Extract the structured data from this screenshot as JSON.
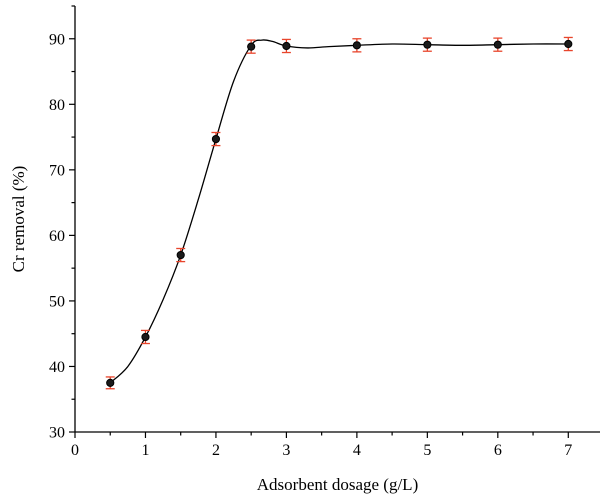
{
  "chart_data": {
    "type": "scatter",
    "xlabel": "Adsorbent dosage (g/L)",
    "ylabel": "Cr removal (%)",
    "xlim": [
      0,
      7.45
    ],
    "ylim": [
      30,
      95
    ],
    "xticks": [
      0,
      1,
      2,
      3,
      4,
      5,
      6,
      7
    ],
    "yticks": [
      30,
      40,
      50,
      60,
      70,
      80,
      90
    ],
    "x": [
      0.5,
      1,
      1.5,
      2,
      2.5,
      3,
      4,
      5,
      6,
      7
    ],
    "y": [
      37.5,
      44.5,
      57.0,
      74.7,
      88.8,
      88.9,
      89.0,
      89.1,
      89.1,
      89.2
    ],
    "error": [
      0.9,
      1.0,
      1.0,
      1.0,
      1.0,
      1.0,
      1.0,
      1.0,
      1.0,
      1.0
    ],
    "curve_x": [
      0.5,
      0.75,
      1,
      1.25,
      1.5,
      1.75,
      2,
      2.25,
      2.5,
      2.65,
      2.8,
      3,
      3.3,
      3.6,
      4,
      4.5,
      5,
      5.5,
      6,
      6.5,
      7
    ],
    "curve_y": [
      37.5,
      40.0,
      44.5,
      50.2,
      57.0,
      65.5,
      74.7,
      83.5,
      89.0,
      89.8,
      89.6,
      88.9,
      88.6,
      88.8,
      89.0,
      89.2,
      89.1,
      89.0,
      89.1,
      89.2,
      89.2
    ],
    "grid": false,
    "colors": {
      "axis": "#000000",
      "curve": "#000000",
      "error_bar": "#e8452c",
      "marker_fill": "#1a1a1a"
    }
  }
}
